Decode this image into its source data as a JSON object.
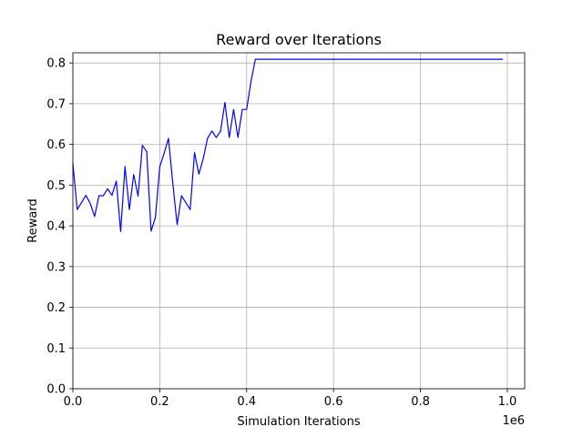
{
  "chart_data": {
    "type": "line",
    "title": "Reward over Iterations",
    "xlabel": "Simulation Iterations",
    "ylabel": "Reward",
    "x_offset_label": "1e6",
    "xlim": [
      0,
      1.04
    ],
    "ylim": [
      0,
      0.825
    ],
    "x_ticks": [
      0.0,
      0.2,
      0.4,
      0.6,
      0.8,
      1.0
    ],
    "x_tick_labels": [
      "0.0",
      "0.2",
      "0.4",
      "0.6",
      "0.8",
      "1.0"
    ],
    "y_ticks": [
      0.0,
      0.1,
      0.2,
      0.3,
      0.4,
      0.5,
      0.6,
      0.7,
      0.8
    ],
    "y_tick_labels": [
      "0.0",
      "0.1",
      "0.2",
      "0.3",
      "0.4",
      "0.5",
      "0.6",
      "0.7",
      "0.8"
    ],
    "grid": true,
    "line_color": "#0000ff",
    "series": [
      {
        "x": [
          0.0,
          0.01,
          0.03,
          0.04,
          0.05,
          0.06,
          0.07,
          0.08,
          0.09,
          0.1,
          0.11,
          0.12,
          0.13,
          0.14,
          0.15,
          0.16,
          0.17,
          0.18,
          0.19,
          0.2,
          0.21,
          0.22,
          0.23,
          0.24,
          0.25,
          0.26,
          0.27,
          0.28,
          0.29,
          0.3,
          0.31,
          0.32,
          0.33,
          0.34,
          0.35,
          0.36,
          0.37,
          0.38,
          0.39,
          0.4,
          0.41,
          0.42,
          0.5,
          0.6,
          0.7,
          0.8,
          0.9,
          0.99
        ],
        "values": [
          0.553,
          0.44,
          0.475,
          0.455,
          0.423,
          0.474,
          0.474,
          0.491,
          0.475,
          0.51,
          0.386,
          0.546,
          0.44,
          0.526,
          0.473,
          0.598,
          0.582,
          0.387,
          0.421,
          0.545,
          0.578,
          0.615,
          0.505,
          0.403,
          0.474,
          0.457,
          0.44,
          0.58,
          0.527,
          0.565,
          0.615,
          0.633,
          0.617,
          0.633,
          0.703,
          0.617,
          0.686,
          0.617,
          0.686,
          0.686,
          0.755,
          0.809,
          0.809,
          0.809,
          0.809,
          0.809,
          0.809,
          0.809
        ]
      }
    ]
  }
}
